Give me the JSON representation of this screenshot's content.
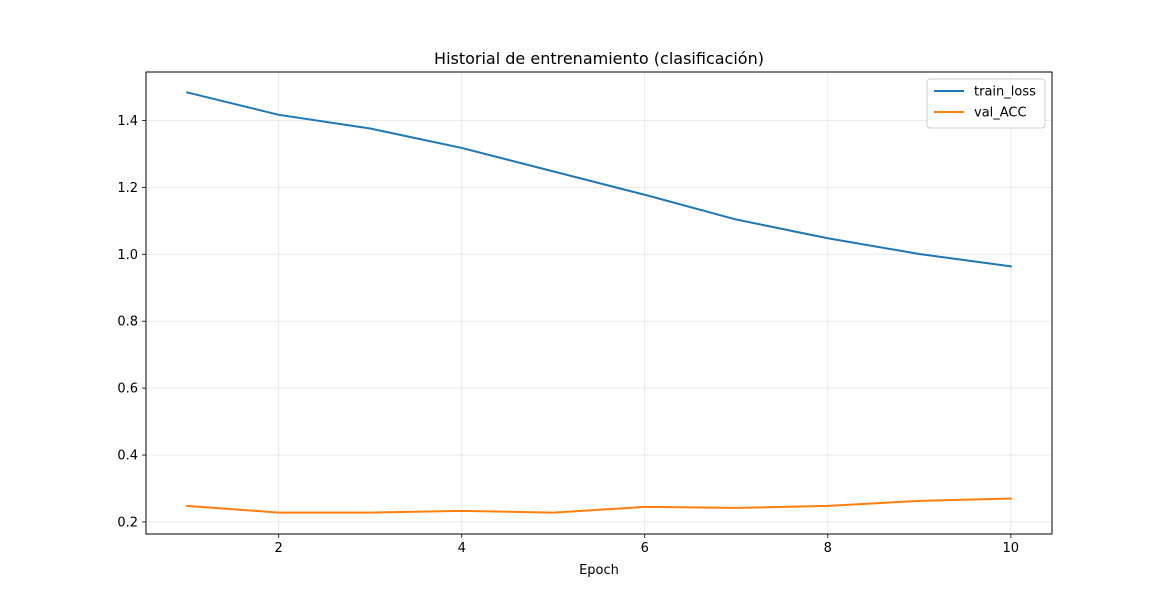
{
  "chart_data": {
    "type": "line",
    "title": "Historial de entrenamiento (clasificación)",
    "xlabel": "Epoch",
    "ylabel": "",
    "x": [
      1,
      2,
      3,
      4,
      5,
      6,
      7,
      8,
      9,
      10
    ],
    "xlim": [
      0.55,
      10.45
    ],
    "ylim": [
      0.164,
      1.545
    ],
    "xticks": [
      2,
      4,
      6,
      8,
      10
    ],
    "yticks": [
      0.2,
      0.4,
      0.6,
      0.8,
      1.0,
      1.2,
      1.4
    ],
    "ytick_labels": [
      "0.2",
      "0.4",
      "0.6",
      "0.8",
      "1.0",
      "1.2",
      "1.4"
    ],
    "grid": true,
    "legend_position": "top-right",
    "series": [
      {
        "name": "train_loss",
        "color": "#1f77b4",
        "values": [
          1.484,
          1.417,
          1.376,
          1.318,
          1.248,
          1.178,
          1.104,
          1.048,
          1.001,
          0.964
        ]
      },
      {
        "name": "val_ACC",
        "color": "#ff7f0e",
        "values": [
          0.248,
          0.228,
          0.228,
          0.233,
          0.228,
          0.245,
          0.242,
          0.248,
          0.263,
          0.27
        ]
      }
    ]
  }
}
